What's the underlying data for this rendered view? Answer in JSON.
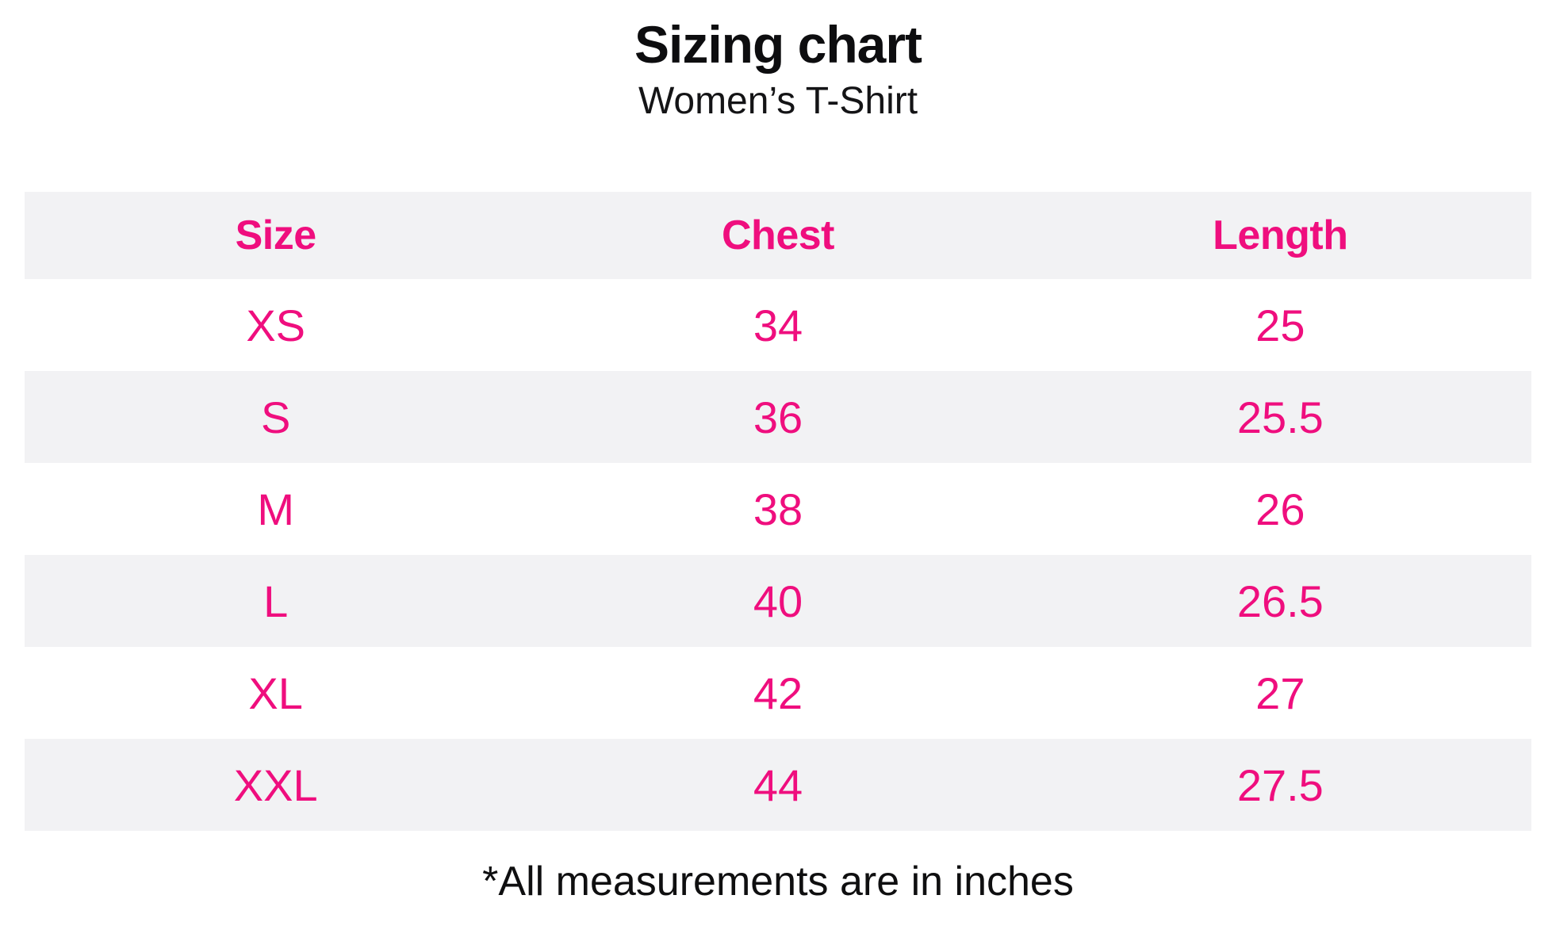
{
  "page": {
    "title": "Sizing chart",
    "subtitle": "Women’s T-Shirt",
    "footnote": "*All measurements are in inches"
  },
  "chart_data": {
    "type": "table",
    "title": "Sizing chart",
    "subtitle": "Women’s T-Shirt",
    "columns": [
      "Size",
      "Chest",
      "Length"
    ],
    "rows": [
      [
        "XS",
        34,
        25
      ],
      [
        "S",
        36,
        25.5
      ],
      [
        "M",
        38,
        26
      ],
      [
        "L",
        40,
        26.5
      ],
      [
        "XL",
        42,
        27
      ],
      [
        "XXL",
        44,
        27.5
      ]
    ],
    "footnote": "*All measurements are in inches",
    "layout_hints": {
      "header_text_color": "#ef0e7e",
      "data_text_color": "#ef0e7e",
      "alt_row_background": "#f2f2f4",
      "plain_row_background": "#ffffff",
      "striping": "header and even data rows shaded"
    }
  },
  "colors": {
    "accent_pink": "#ef0e7e",
    "row_alt_bg": "#f2f2f4",
    "text_black": "#0d0d0f"
  }
}
